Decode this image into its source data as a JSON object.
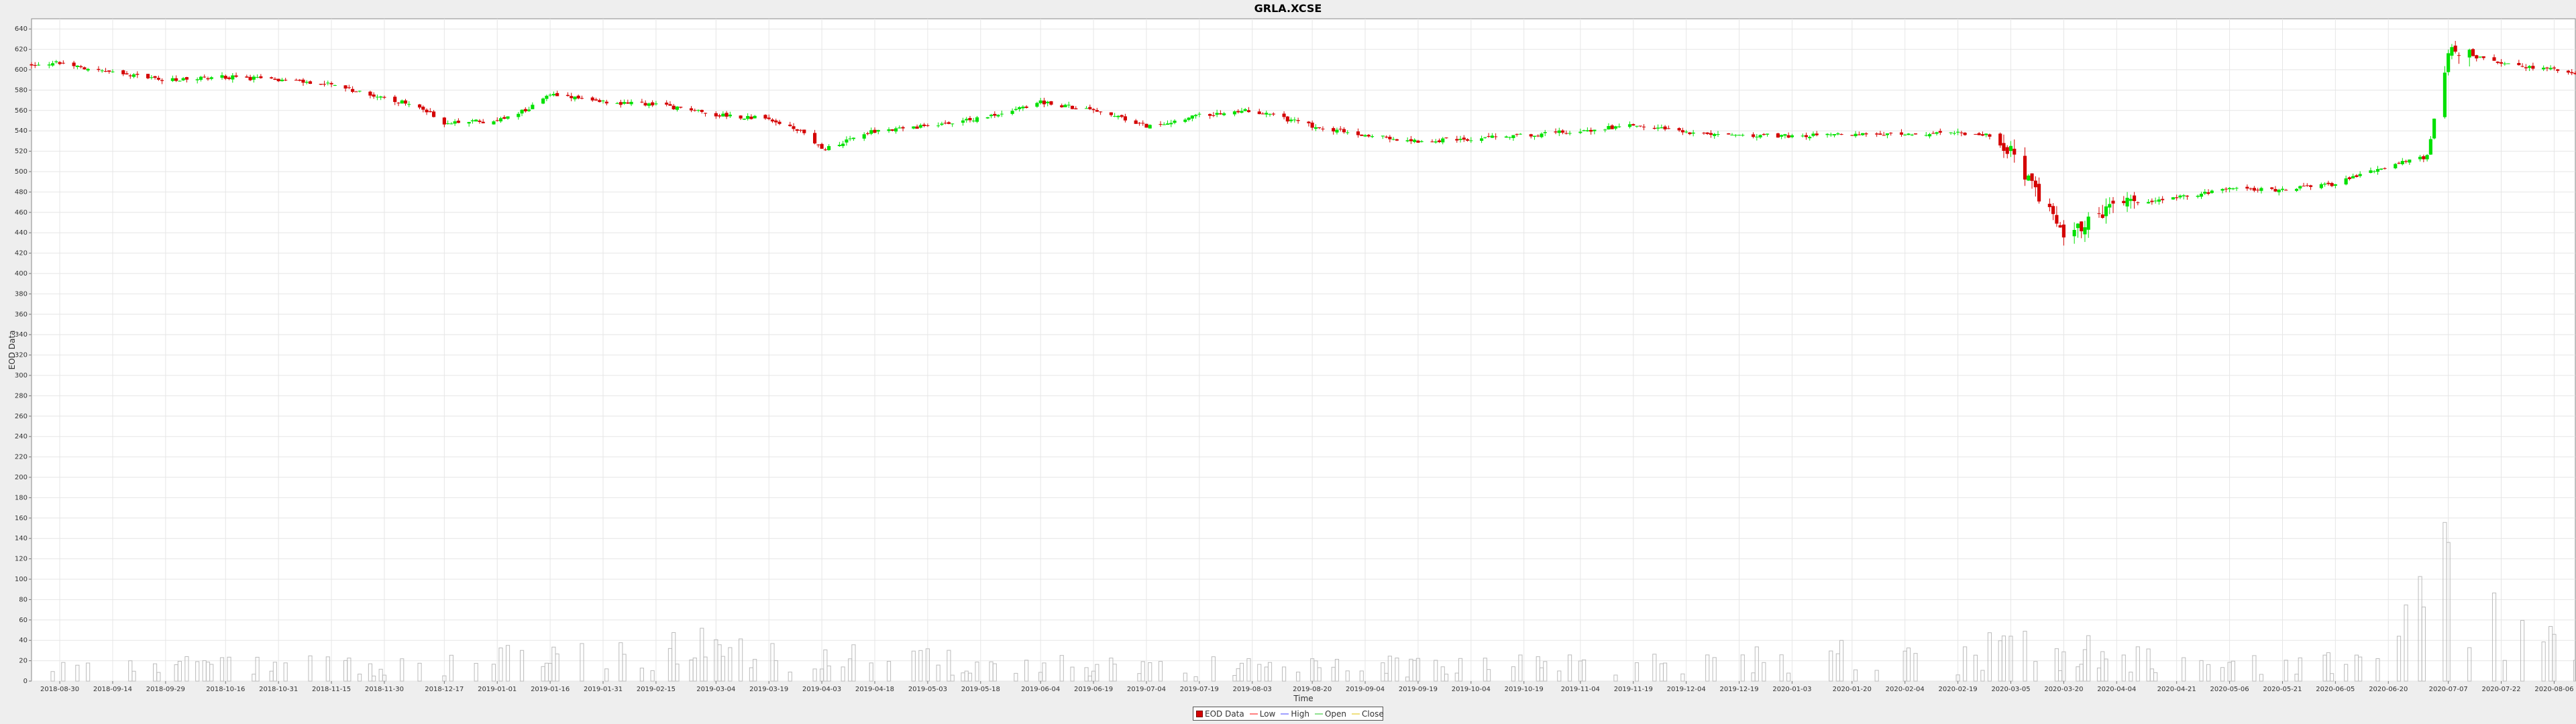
{
  "chart_data": {
    "type": "candlestick",
    "title": "GRLA.XCSE",
    "xlabel": "Time",
    "ylabel": "EOD Data",
    "ylim": [
      0,
      650
    ],
    "y_ticks": [
      0,
      20,
      40,
      60,
      80,
      100,
      120,
      140,
      160,
      180,
      200,
      220,
      240,
      260,
      280,
      300,
      320,
      340,
      360,
      380,
      400,
      420,
      440,
      460,
      480,
      500,
      520,
      540,
      560,
      580,
      600,
      620,
      640
    ],
    "x_range": [
      "2018-08-22",
      "2020-08-12"
    ],
    "x_ticks": [
      "2018-08-30",
      "2018-09-14",
      "2018-09-29",
      "2018-10-16",
      "2018-10-31",
      "2018-11-15",
      "2018-11-30",
      "2018-12-17",
      "2019-01-01",
      "2019-01-16",
      "2019-01-31",
      "2019-02-15",
      "2019-03-04",
      "2019-03-19",
      "2019-04-03",
      "2019-04-18",
      "2019-05-03",
      "2019-05-18",
      "2019-06-04",
      "2019-06-19",
      "2019-07-04",
      "2019-07-19",
      "2019-08-03",
      "2019-08-20",
      "2019-09-04",
      "2019-09-19",
      "2019-10-04",
      "2019-10-19",
      "2019-11-04",
      "2019-11-19",
      "2019-12-04",
      "2019-12-19",
      "2020-01-03",
      "2020-01-20",
      "2020-02-04",
      "2020-02-19",
      "2020-03-05",
      "2020-03-20",
      "2020-04-04",
      "2020-04-21",
      "2020-05-06",
      "2020-05-21",
      "2020-06-05",
      "2020-06-20",
      "2020-07-07",
      "2020-07-22",
      "2020-08-06"
    ],
    "grid": true,
    "legend_position": "bottom-center",
    "legend": [
      "EOD Data",
      "Low",
      "High",
      "Open",
      "Close"
    ],
    "colors": {
      "up": "#00e000",
      "down": "#d40000",
      "volume": "#bbbbbb",
      "plot_bg": "#ffffff",
      "grid": "#e6e6e6"
    },
    "price_path": [
      [
        "2018-08-22",
        605
      ],
      [
        "2018-08-30",
        607
      ],
      [
        "2018-09-14",
        597
      ],
      [
        "2018-09-29",
        590
      ],
      [
        "2018-10-16",
        593
      ],
      [
        "2018-10-31",
        590
      ],
      [
        "2018-11-15",
        585
      ],
      [
        "2018-11-30",
        573
      ],
      [
        "2018-12-10",
        563
      ],
      [
        "2018-12-17",
        548
      ],
      [
        "2019-01-01",
        550
      ],
      [
        "2019-01-10",
        562
      ],
      [
        "2019-01-16",
        575
      ],
      [
        "2019-01-31",
        568
      ],
      [
        "2019-02-15",
        566
      ],
      [
        "2019-03-04",
        556
      ],
      [
        "2019-03-19",
        552
      ],
      [
        "2019-03-28",
        540
      ],
      [
        "2019-04-03",
        522
      ],
      [
        "2019-04-18",
        540
      ],
      [
        "2019-05-03",
        545
      ],
      [
        "2019-05-18",
        552
      ],
      [
        "2019-06-04",
        568
      ],
      [
        "2019-06-19",
        560
      ],
      [
        "2019-07-04",
        545
      ],
      [
        "2019-07-19",
        555
      ],
      [
        "2019-08-03",
        560
      ],
      [
        "2019-08-20",
        545
      ],
      [
        "2019-09-04",
        535
      ],
      [
        "2019-09-19",
        530
      ],
      [
        "2019-10-04",
        532
      ],
      [
        "2019-10-19",
        536
      ],
      [
        "2019-11-04",
        540
      ],
      [
        "2019-11-19",
        546
      ],
      [
        "2019-12-04",
        538
      ],
      [
        "2019-12-19",
        536
      ],
      [
        "2020-01-03",
        535
      ],
      [
        "2020-01-20",
        537
      ],
      [
        "2020-02-04",
        536
      ],
      [
        "2020-02-19",
        538
      ],
      [
        "2020-02-28",
        535
      ],
      [
        "2020-03-05",
        520
      ],
      [
        "2020-03-12",
        480
      ],
      [
        "2020-03-20",
        440
      ],
      [
        "2020-03-26",
        448
      ],
      [
        "2020-04-04",
        468
      ],
      [
        "2020-04-21",
        475
      ],
      [
        "2020-05-06",
        482
      ],
      [
        "2020-05-21",
        482
      ],
      [
        "2020-06-05",
        488
      ],
      [
        "2020-06-20",
        505
      ],
      [
        "2020-07-01",
        515
      ],
      [
        "2020-07-07",
        620
      ],
      [
        "2020-07-22",
        605
      ],
      [
        "2020-08-06",
        600
      ],
      [
        "2020-08-12",
        595
      ]
    ],
    "volume_profile": [
      [
        "2018-08-22",
        15
      ],
      [
        "2018-12-17",
        25
      ],
      [
        "2019-02-15",
        45
      ],
      [
        "2019-03-19",
        40
      ],
      [
        "2019-04-03",
        30
      ],
      [
        "2019-07-04",
        18
      ],
      [
        "2019-12-19",
        22
      ],
      [
        "2020-01-03",
        35
      ],
      [
        "2020-02-19",
        30
      ],
      [
        "2020-03-05",
        50
      ],
      [
        "2020-03-20",
        40
      ],
      [
        "2020-04-21",
        20
      ],
      [
        "2020-06-20",
        25
      ],
      [
        "2020-07-07",
        160
      ],
      [
        "2020-08-12",
        20
      ]
    ]
  }
}
